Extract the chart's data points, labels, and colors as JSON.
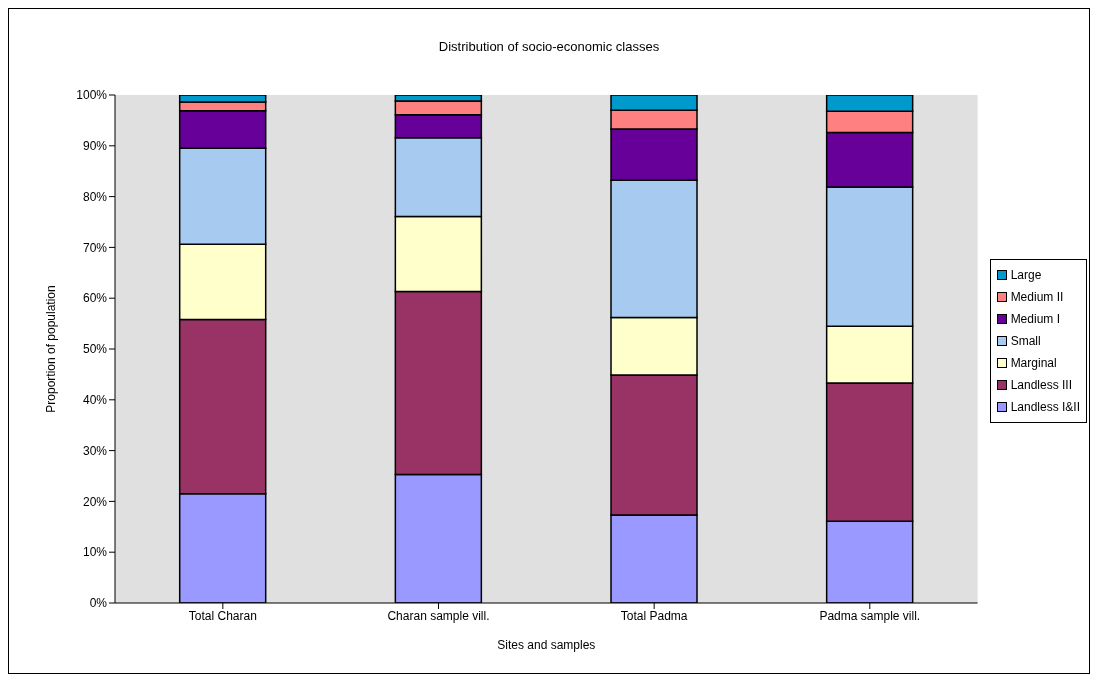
{
  "chart_data": {
    "type": "bar",
    "title": "Distribution of socio-economic classes",
    "xlabel": "Sites and samples",
    "ylabel": "Proportion of population",
    "categories": [
      "Total Charan",
      "Charan sample vill.",
      "Total Padma",
      "Padma sample vill."
    ],
    "stacked": true,
    "series": [
      {
        "name": "Landless I&II",
        "color": "#9999ff",
        "values": [
          21.5,
          25.3,
          17.3,
          16.1
        ]
      },
      {
        "name": "Landless III",
        "color": "#993366",
        "values": [
          34.3,
          36.0,
          27.6,
          27.2
        ]
      },
      {
        "name": "Marginal",
        "color": "#ffffcc",
        "values": [
          14.8,
          14.8,
          11.3,
          11.2
        ]
      },
      {
        "name": "Small",
        "color": "#a6caf0",
        "values": [
          18.9,
          15.5,
          27.0,
          27.4
        ]
      },
      {
        "name": "Medium I",
        "color": "#660099",
        "values": [
          7.4,
          4.5,
          10.1,
          10.7
        ]
      },
      {
        "name": "Medium II",
        "color": "#ff8080",
        "values": [
          1.7,
          2.7,
          3.7,
          4.2
        ]
      },
      {
        "name": "Large",
        "color": "#0099cc",
        "values": [
          1.4,
          1.2,
          3.0,
          3.2
        ]
      }
    ],
    "ylim": [
      0,
      100
    ],
    "yticks": [
      {
        "value": 0,
        "label": "0%"
      },
      {
        "value": 10,
        "label": "10%"
      },
      {
        "value": 20,
        "label": "20%"
      },
      {
        "value": 30,
        "label": "30%"
      },
      {
        "value": 40,
        "label": "40%"
      },
      {
        "value": 50,
        "label": "50%"
      },
      {
        "value": 60,
        "label": "60%"
      },
      {
        "value": 70,
        "label": "70%"
      },
      {
        "value": 80,
        "label": "80%"
      },
      {
        "value": 90,
        "label": "90%"
      },
      {
        "value": 100,
        "label": "100%"
      }
    ],
    "legend": "right"
  }
}
